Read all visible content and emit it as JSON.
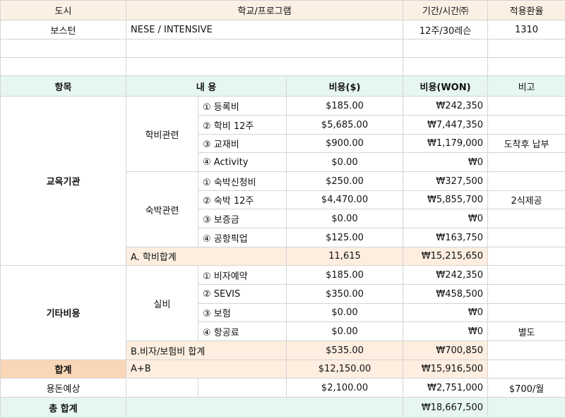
{
  "header": [
    "도시",
    "학교/프로그램",
    "기간/시간㈜",
    "적용환율"
  ],
  "info": {
    "city": "보스턴",
    "program": "NESE / INTENSIVE",
    "period": "12주/30레슨",
    "rate": "1310"
  },
  "columns": [
    "항목",
    "내 용",
    "비용($)",
    "비용(WON)",
    "비고"
  ],
  "sections": [
    {
      "name": "교육기관",
      "groups": [
        {
          "name": "학비관련",
          "items": [
            {
              "label": "① 등록비",
              "usd": "$185.00",
              "won": "₩242,350"
            },
            {
              "label": "② 학비 12주",
              "usd": "$5,685.00",
              "won": "₩7,447,350"
            },
            {
              "label": "③ 교재비",
              "usd": "$900.00",
              "won": "₩1,179,000",
              "note": "도착후 납부"
            },
            {
              "label": "④  Activity",
              "usd": "$0.00",
              "won": "₩0"
            }
          ]
        },
        {
          "name": "숙박관련",
          "items": [
            {
              "label": "① 숙박신청비",
              "usd": "$250.00",
              "won": "₩327,500"
            },
            {
              "label": "② 숙박 12주",
              "usd": "$4,470.00",
              "won": "₩5,855,700",
              "note": "2식제공"
            },
            {
              "label": "③ 보증금",
              "usd": "$0.00",
              "won": "₩0"
            },
            {
              "label": "④ 공항픽업",
              "usd": "$125.00",
              "won": "₩163,750"
            }
          ]
        }
      ],
      "subtotal": {
        "label": "A. 학비합계",
        "usd": "11,615",
        "won": "₩15,215,650"
      }
    },
    {
      "name": "기타비용",
      "groups": [
        {
          "name": "실비",
          "items": [
            {
              "label": "① 비자예약",
              "usd": "$185.00",
              "won": "₩242,350"
            },
            {
              "label": "② SEVIS",
              "usd": "$350.00",
              "won": "₩458,500"
            },
            {
              "label": "③ 보험",
              "usd": "$0.00",
              "won": "₩0"
            },
            {
              "label": "④ 항공료",
              "usd": "$0.00",
              "won": "₩0",
              "note": "별도"
            }
          ]
        }
      ],
      "subtotal": {
        "label": "B.비자/보험비 합계",
        "usd": "$535.00",
        "won": "₩700,850"
      }
    }
  ],
  "total": {
    "label": "합계",
    "formula": "A+B",
    "usd": "$12,150.00",
    "won": "₩15,916,500"
  },
  "allowance": {
    "label": "용돈예상",
    "usd": "$2,100.00",
    "won": "₩2,751,000",
    "note": "$700/월"
  },
  "grand": {
    "label": "총 합계",
    "won": "₩18,667,500"
  }
}
